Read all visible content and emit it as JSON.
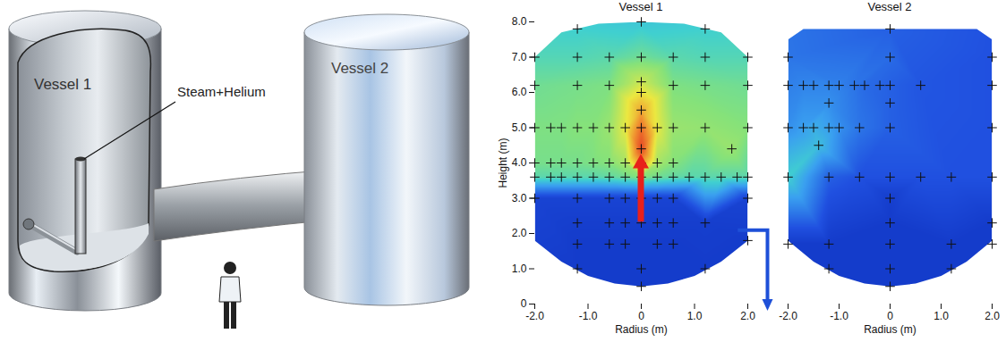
{
  "illustration": {
    "vessel_labels": [
      "Vessel 1",
      "Vessel 2"
    ],
    "inlet_label": "Steam+Helium"
  },
  "chart_data": [
    {
      "type": "heatmap",
      "title": "Vessel 1",
      "xlabel": "Radius (m)",
      "ylabel": "Height (m)",
      "xlim": [
        -2,
        2
      ],
      "ylim": [
        0,
        8
      ],
      "xticks": [
        {
          "value": -2,
          "label": "-2.0"
        },
        {
          "value": -1,
          "label": "-1.0"
        },
        0,
        {
          "value": 1,
          "label": "1.0"
        },
        {
          "value": 2,
          "label": "2.0"
        }
      ],
      "yticks": [
        0,
        {
          "value": 1,
          "label": "1.0"
        },
        {
          "value": 2,
          "label": "2.0"
        },
        {
          "value": 3,
          "label": "3.0"
        },
        {
          "value": 4,
          "label": "4.0"
        },
        {
          "value": 5,
          "label": "5.0"
        },
        {
          "value": 6,
          "label": "6.0"
        },
        {
          "value": 7,
          "label": "7.0"
        },
        {
          "value": 8,
          "label": "8.0"
        }
      ],
      "zlim": [
        0,
        1
      ],
      "outline": [
        [
          -2,
          1.8
        ],
        [
          -1.5,
          1.2
        ],
        [
          -1,
          0.8
        ],
        [
          -0.5,
          0.58
        ],
        [
          0,
          0.5
        ],
        [
          0.5,
          0.58
        ],
        [
          1,
          0.8
        ],
        [
          1.5,
          1.2
        ],
        [
          2,
          1.8
        ],
        [
          2,
          7.0
        ],
        [
          1.5,
          7.7
        ],
        [
          0.8,
          7.95
        ],
        [
          0,
          8
        ],
        [
          -0.8,
          7.95
        ],
        [
          -1.5,
          7.7
        ],
        [
          -2,
          7.0
        ]
      ],
      "points": [
        [
          -1.2,
          7.8,
          0.4
        ],
        [
          0,
          8.0,
          0.38
        ],
        [
          1.2,
          7.8,
          0.4
        ],
        [
          -2,
          7,
          0.43
        ],
        [
          -1.2,
          7,
          0.43
        ],
        [
          -0.6,
          7,
          0.44
        ],
        [
          0,
          7,
          0.47
        ],
        [
          0.6,
          7,
          0.44
        ],
        [
          1.2,
          7,
          0.43
        ],
        [
          2,
          7,
          0.43
        ],
        [
          -2,
          6.2,
          0.47
        ],
        [
          -1.2,
          6.2,
          0.48
        ],
        [
          -0.6,
          6.2,
          0.49
        ],
        [
          0,
          6.3,
          0.6
        ],
        [
          0.6,
          6.2,
          0.49
        ],
        [
          1.2,
          6.2,
          0.48
        ],
        [
          2,
          6.2,
          0.47
        ],
        [
          0,
          6.0,
          0.66
        ],
        [
          0,
          5.5,
          0.76
        ],
        [
          -2,
          5,
          0.49
        ],
        [
          -1.7,
          5,
          0.49
        ],
        [
          -1.5,
          5,
          0.49
        ],
        [
          -1.2,
          5,
          0.5
        ],
        [
          -0.9,
          5,
          0.5
        ],
        [
          -0.6,
          5,
          0.53
        ],
        [
          -0.3,
          5,
          0.64
        ],
        [
          0,
          5,
          0.86
        ],
        [
          0.3,
          5,
          0.64
        ],
        [
          0.6,
          5,
          0.53
        ],
        [
          1.2,
          5,
          0.52
        ],
        [
          2,
          5,
          0.5
        ],
        [
          1.7,
          4.4,
          0.53
        ],
        [
          0,
          4.4,
          0.93
        ],
        [
          -2,
          4,
          0.48
        ],
        [
          -1.7,
          4,
          0.48
        ],
        [
          -1.5,
          4,
          0.48
        ],
        [
          -1.2,
          4,
          0.48
        ],
        [
          -0.9,
          4,
          0.49
        ],
        [
          -0.6,
          4,
          0.5
        ],
        [
          -0.3,
          4,
          0.55
        ],
        [
          0,
          4,
          0.8
        ],
        [
          0.3,
          4,
          0.55
        ],
        [
          0.6,
          4,
          0.5
        ],
        [
          -2,
          3.6,
          0.44
        ],
        [
          -1.7,
          3.6,
          0.44
        ],
        [
          -1.5,
          3.6,
          0.44
        ],
        [
          -1.2,
          3.6,
          0.44
        ],
        [
          -0.9,
          3.6,
          0.44
        ],
        [
          -0.6,
          3.6,
          0.45
        ],
        [
          -0.3,
          3.6,
          0.47
        ],
        [
          0,
          3.6,
          0.5
        ],
        [
          0.3,
          3.6,
          0.47
        ],
        [
          0.6,
          3.6,
          0.45
        ],
        [
          0.9,
          3.6,
          0.44
        ],
        [
          1.2,
          3.6,
          0.44
        ],
        [
          1.5,
          3.6,
          0.44
        ],
        [
          1.8,
          3.6,
          0.44
        ],
        [
          2,
          3.6,
          0.44
        ],
        [
          -2,
          3,
          0.1
        ],
        [
          -1.2,
          3,
          0.1
        ],
        [
          -0.6,
          3,
          0.1
        ],
        [
          -0.3,
          3,
          0.1
        ],
        [
          0,
          3,
          0.1
        ],
        [
          0.3,
          3,
          0.1
        ],
        [
          0.6,
          3,
          0.1
        ],
        [
          2,
          3,
          0.1
        ],
        [
          -1.2,
          2.3,
          0.08
        ],
        [
          -0.6,
          2.3,
          0.08
        ],
        [
          -0.3,
          2.3,
          0.08
        ],
        [
          0,
          2.3,
          0.08
        ],
        [
          0.3,
          2.3,
          0.08
        ],
        [
          0.6,
          2.3,
          0.08
        ],
        [
          1.2,
          2.3,
          0.08
        ],
        [
          -1.2,
          1.7,
          0.07
        ],
        [
          -0.6,
          1.7,
          0.07
        ],
        [
          -0.3,
          1.7,
          0.07
        ],
        [
          0.3,
          1.7,
          0.07
        ],
        [
          0.6,
          1.7,
          0.07
        ],
        [
          2,
          1.8,
          0.07
        ],
        [
          -1.2,
          1,
          0.07
        ],
        [
          0,
          1,
          0.07
        ],
        [
          1.2,
          1,
          0.07
        ],
        [
          0,
          0.5,
          0.07
        ]
      ]
    },
    {
      "type": "heatmap",
      "title": "Vessel 2",
      "xlabel": "Radius (m)",
      "xlim": [
        -2,
        2
      ],
      "ylim": [
        0,
        8
      ],
      "xticks": [
        {
          "value": -2,
          "label": "-2.0"
        },
        {
          "value": -1,
          "label": "-1.0"
        },
        0,
        {
          "value": 1,
          "label": "1.0"
        },
        {
          "value": 2,
          "label": "2.0"
        }
      ],
      "tick_labels": "x",
      "zlim": [
        0,
        1
      ],
      "outline": [
        [
          -2,
          1.8
        ],
        [
          -1.5,
          1.2
        ],
        [
          -1,
          0.8
        ],
        [
          -0.5,
          0.58
        ],
        [
          0,
          0.5
        ],
        [
          0.5,
          0.58
        ],
        [
          1,
          0.8
        ],
        [
          1.5,
          1.2
        ],
        [
          2,
          1.8
        ],
        [
          2,
          7.5
        ],
        [
          1.7,
          7.8
        ],
        [
          -1.7,
          7.8
        ],
        [
          -2,
          7.5
        ]
      ],
      "points": [
        [
          0,
          7.8,
          0.18
        ],
        [
          -2,
          7,
          0.22
        ],
        [
          0,
          7,
          0.2
        ],
        [
          2,
          7,
          0.15
        ],
        [
          -2,
          6.2,
          0.24
        ],
        [
          -1.7,
          6.2,
          0.25
        ],
        [
          -1.5,
          6.2,
          0.25
        ],
        [
          -1.2,
          6.2,
          0.25
        ],
        [
          -1,
          6.2,
          0.24
        ],
        [
          -0.7,
          6.2,
          0.22
        ],
        [
          -0.5,
          6.2,
          0.2
        ],
        [
          -0.2,
          6.2,
          0.19
        ],
        [
          0,
          6.2,
          0.18
        ],
        [
          0.6,
          6.2,
          0.16
        ],
        [
          2,
          6.2,
          0.15
        ],
        [
          -1.2,
          5.7,
          0.27
        ],
        [
          0,
          5.7,
          0.18
        ],
        [
          -2,
          5,
          0.27
        ],
        [
          -1.7,
          5,
          0.3
        ],
        [
          -1.5,
          5,
          0.33
        ],
        [
          -1.2,
          5,
          0.3
        ],
        [
          -1,
          5,
          0.27
        ],
        [
          -0.6,
          5,
          0.22
        ],
        [
          0,
          5,
          0.18
        ],
        [
          2,
          5,
          0.15
        ],
        [
          -1.4,
          4.5,
          0.36
        ],
        [
          -2,
          3.6,
          0.4
        ],
        [
          -1.2,
          3.6,
          0.18
        ],
        [
          -0.6,
          3.6,
          0.15
        ],
        [
          0,
          3.6,
          0.15
        ],
        [
          0.6,
          3.6,
          0.15
        ],
        [
          1.2,
          3.6,
          0.15
        ],
        [
          2,
          3.6,
          0.15
        ],
        [
          0,
          3,
          0.08
        ],
        [
          0,
          2.3,
          0.07
        ],
        [
          2,
          2.3,
          0.07
        ],
        [
          -2,
          1.7,
          0.07
        ],
        [
          -1.2,
          1.7,
          0.07
        ],
        [
          0,
          1.7,
          0.07
        ],
        [
          1.2,
          1.7,
          0.07
        ],
        [
          2,
          1.7,
          0.07
        ],
        [
          -1.2,
          1,
          0.07
        ],
        [
          0,
          1,
          0.07
        ],
        [
          1.2,
          1,
          0.07
        ],
        [
          0,
          0.5,
          0.07
        ]
      ]
    }
  ]
}
